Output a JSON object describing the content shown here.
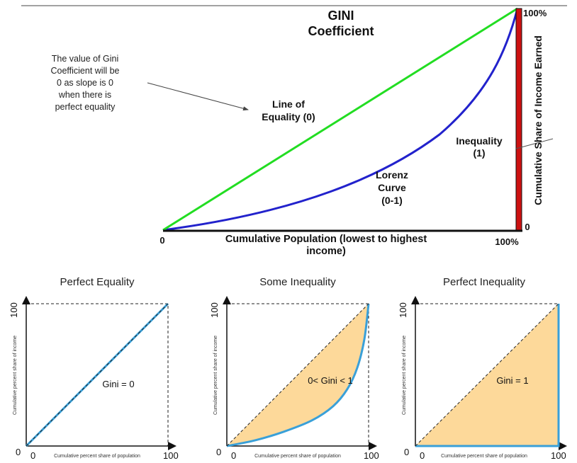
{
  "main_diagram": {
    "title_line1": "GINI",
    "title_line2": "Coefficient",
    "note_lines": [
      "The value of Gini",
      "Coefficient will be",
      "0 as slope is 0",
      "when there is",
      "perfect equality"
    ],
    "equality_label_line1": "Line of",
    "equality_label_line2": "Equality (0)",
    "inequality_label_line1": "Inequality",
    "inequality_label_line2": "(1)",
    "lorenz_label_line1": "Lorenz",
    "lorenz_label_line2": "Curve",
    "lorenz_label_line3": "(0-1)",
    "x_axis_label_line1": "Cumulative Population (lowest to highest",
    "x_axis_label_line2": "income)",
    "y_axis_label": "Cumulative Share of Income Earned",
    "origin_label": "0",
    "x_end_label": "100%",
    "y_top_label": "100%",
    "y_zero_label": "0",
    "colors": {
      "equality": "#22dd22",
      "lorenz": "#2222cc",
      "inequality": "#cc1111",
      "base": "#111111"
    }
  },
  "panels": [
    {
      "title": "Perfect Equality",
      "gini_label": "Gini = 0",
      "x_axis_label": "Cumulative percent share of population",
      "y_axis_label": "Cumulative percent share of income",
      "tick_zero_x": "0",
      "tick_zero_y": "0",
      "tick_max_x": "100",
      "tick_max_y": "100",
      "lorenz_curve": [
        [
          0,
          0
        ],
        [
          100,
          100
        ]
      ]
    },
    {
      "title": "Some Inequality",
      "gini_label": "0< Gini < 1",
      "x_axis_label": "Cumulative percent share of population",
      "y_axis_label": "Cumulative percent share of income",
      "tick_zero_x": "0",
      "tick_zero_y": "0",
      "tick_max_x": "100",
      "tick_max_y": "100",
      "lorenz_curve": [
        [
          0,
          0
        ],
        [
          20,
          4
        ],
        [
          40,
          10
        ],
        [
          60,
          18
        ],
        [
          75,
          28
        ],
        [
          85,
          40
        ],
        [
          92,
          55
        ],
        [
          97,
          75
        ],
        [
          100,
          100
        ]
      ]
    },
    {
      "title": "Perfect Inequality",
      "gini_label": "Gini = 1",
      "x_axis_label": "Cumulative percent share of population",
      "y_axis_label": "Cumulative percent share of income",
      "tick_zero_x": "0",
      "tick_zero_y": "0",
      "tick_max_x": "100",
      "tick_max_y": "100",
      "lorenz_curve": [
        [
          0,
          0
        ],
        [
          100,
          0
        ],
        [
          100,
          100
        ]
      ]
    }
  ],
  "panel_colors": {
    "area": "#fdd99a",
    "curve": "#3aa0d8",
    "equality_line": "#222222"
  }
}
